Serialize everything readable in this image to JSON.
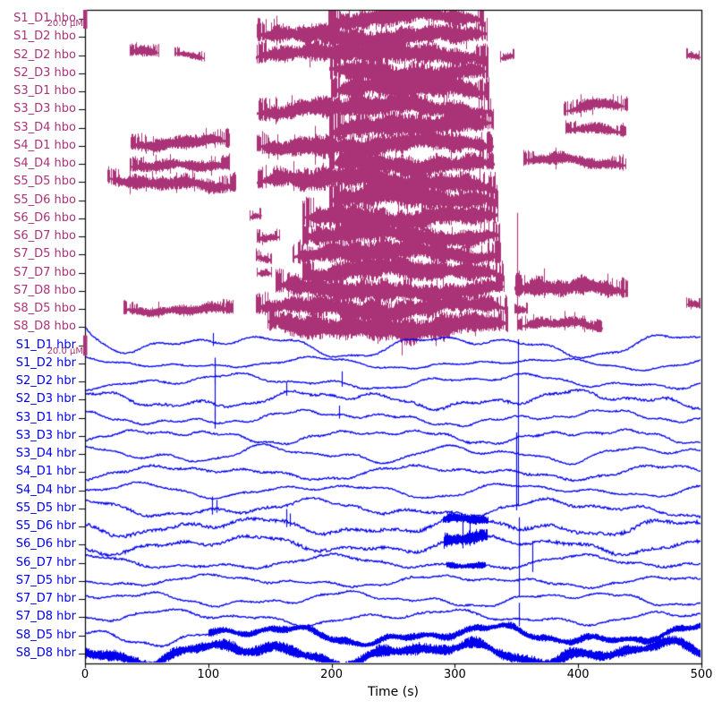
{
  "figure": {
    "xlabel": "Time (s)",
    "background": "#ffffff",
    "axis_color": "#000000"
  },
  "chart_data": {
    "type": "line",
    "title": "",
    "xlabel": "Time (s)",
    "ylabel": "",
    "x_range": [
      0,
      500
    ],
    "x_ticks": [
      0,
      100,
      200,
      300,
      400,
      500
    ],
    "grid": false,
    "legend": null,
    "colors": {
      "hbo": "#aa3377",
      "hbr": "#0000ee",
      "scalebar": "#aa3377",
      "axis": "#000000",
      "tick": "#000000"
    },
    "scalebars": [
      {
        "label": "20.0 µM",
        "channel_type": "hbo"
      },
      {
        "label": "20.0 µM",
        "channel_type": "hbr"
      }
    ],
    "n_channels": 36,
    "channels": [
      {
        "name": "S1_D1 hbo",
        "type": "hbo",
        "drift": 6,
        "segments": [
          [
            197,
            323,
            9
          ]
        ],
        "spikes": []
      },
      {
        "name": "S1_D2 hbo",
        "type": "hbo",
        "drift": 7,
        "segments": [
          [
            139,
            326,
            10
          ]
        ],
        "spikes": []
      },
      {
        "name": "S2_D2 hbo",
        "type": "hbo",
        "drift": 6,
        "segments": [
          [
            36,
            60,
            7
          ],
          [
            72,
            97,
            5
          ],
          [
            138,
            327,
            10
          ],
          [
            336,
            348,
            5
          ],
          [
            487,
            500,
            6
          ]
        ],
        "spikes": []
      },
      {
        "name": "S2_D3 hbo",
        "type": "hbo",
        "drift": 7,
        "segments": [
          [
            198,
            327,
            11
          ]
        ],
        "spikes": []
      },
      {
        "name": "S3_D1 hbo",
        "type": "hbo",
        "drift": 7,
        "segments": [
          [
            199,
            328,
            10
          ]
        ],
        "spikes": []
      },
      {
        "name": "S3_D3 hbo",
        "type": "hbo",
        "drift": 7,
        "segments": [
          [
            139,
            330,
            10
          ],
          [
            388,
            440,
            8
          ]
        ],
        "spikes": []
      },
      {
        "name": "S3_D4 hbo",
        "type": "hbo",
        "drift": 7,
        "segments": [
          [
            198,
            331,
            11
          ],
          [
            389,
            439,
            7
          ]
        ],
        "spikes": []
      },
      {
        "name": "S4_D1 hbo",
        "type": "hbo",
        "drift": 7,
        "segments": [
          [
            37,
            117,
            9
          ],
          [
            139,
            331,
            10
          ]
        ],
        "spikes": []
      },
      {
        "name": "S4_D4 hbo",
        "type": "hbo",
        "drift": 7,
        "segments": [
          [
            36,
            117,
            8
          ],
          [
            198,
            332,
            10
          ],
          [
            355,
            439,
            8
          ]
        ],
        "spikes": []
      },
      {
        "name": "S5_D5 hbo",
        "type": "hbo",
        "drift": 8,
        "segments": [
          [
            18,
            122,
            9
          ],
          [
            139,
            333,
            11
          ]
        ],
        "spikes": []
      },
      {
        "name": "S5_D6 hbo",
        "type": "hbo",
        "drift": 7,
        "segments": [
          [
            198,
            335,
            11
          ]
        ],
        "spikes": []
      },
      {
        "name": "S6_D6 hbo",
        "type": "hbo",
        "drift": 7,
        "segments": [
          [
            133,
            143,
            5
          ],
          [
            176,
            335,
            11
          ]
        ],
        "spikes": []
      },
      {
        "name": "S6_D7 hbo",
        "type": "hbo",
        "drift": 7,
        "segments": [
          [
            139,
            158,
            6
          ],
          [
            176,
            336,
            10
          ]
        ],
        "spikes": []
      },
      {
        "name": "S7_D5 hbo",
        "type": "hbo",
        "drift": 7,
        "segments": [
          [
            138,
            151,
            6
          ],
          [
            168,
            337,
            10
          ]
        ],
        "spikes": []
      },
      {
        "name": "S7_D7 hbo",
        "type": "hbo",
        "drift": 7,
        "segments": [
          [
            139,
            151,
            5
          ],
          [
            176,
            339,
            10
          ]
        ],
        "spikes": []
      },
      {
        "name": "S7_D8 hbo",
        "type": "hbo",
        "drift": 7,
        "segments": [
          [
            154,
            340,
            10
          ],
          [
            348,
            440,
            12
          ]
        ],
        "spikes": [
          [
            350.5,
            85
          ]
        ]
      },
      {
        "name": "S8_D5 hbo",
        "type": "hbo",
        "drift": 7,
        "segments": [
          [
            31,
            120,
            7
          ],
          [
            138,
            342,
            10
          ],
          [
            348,
            359,
            6
          ],
          [
            487,
            500,
            6
          ]
        ],
        "spikes": []
      },
      {
        "name": "S8_D8 hbo",
        "type": "hbo",
        "drift": 8,
        "segments": [
          [
            148,
            343,
            12
          ],
          [
            350,
            420,
            7
          ]
        ],
        "spikes": []
      },
      {
        "name": "S1_D1 hbr",
        "type": "hbr",
        "amp": 1.0,
        "drift": 16,
        "decay": [
          30,
          16
        ],
        "spikes": [
          [
            104,
            10
          ]
        ]
      },
      {
        "name": "S1_D2 hbr",
        "type": "hbr",
        "amp": 0.8,
        "drift": 8,
        "spikes": [
          [
            105,
            8
          ]
        ]
      },
      {
        "name": "S2_D2 hbr",
        "type": "hbr",
        "amp": 1.0,
        "drift": 10,
        "spikes": [
          [
            105,
            20
          ],
          [
            208,
            12
          ]
        ]
      },
      {
        "name": "S2_D3 hbr",
        "type": "hbr",
        "amp": 1.6,
        "drift": 12,
        "spikes": [
          [
            105,
            35
          ],
          [
            163,
            10
          ]
        ]
      },
      {
        "name": "S3_D1 hbr",
        "type": "hbr",
        "amp": 1.0,
        "drift": 10,
        "spikes": [
          [
            105,
            14
          ],
          [
            206,
            10
          ]
        ]
      },
      {
        "name": "S3_D3 hbr",
        "type": "hbr",
        "amp": 1.2,
        "drift": 10,
        "spikes": []
      },
      {
        "name": "S3_D4 hbr",
        "type": "hbr",
        "amp": 1.0,
        "drift": 12,
        "spikes": [
          [
            351,
            128
          ]
        ]
      },
      {
        "name": "S4_D1 hbr",
        "type": "hbr",
        "amp": 1.4,
        "drift": 10,
        "spikes": []
      },
      {
        "name": "S4_D4 hbr",
        "type": "hbr",
        "amp": 1.0,
        "drift": 10,
        "spikes": [
          [
            350,
            60
          ]
        ]
      },
      {
        "name": "S5_D5 hbr",
        "type": "hbr",
        "amp": 1.6,
        "drift": 12,
        "spikes": [
          [
            103,
            14
          ],
          [
            107,
            10
          ]
        ]
      },
      {
        "name": "S5_D6 hbr",
        "type": "hbr",
        "amp": 2.2,
        "drift": 12,
        "segments": [
          [
            290,
            327,
            6
          ]
        ],
        "spikes": [
          [
            163,
            14
          ],
          [
            166,
            10
          ]
        ]
      },
      {
        "name": "S6_D6 hbr",
        "type": "hbr",
        "amp": 2.0,
        "drift": 12,
        "segments": [
          [
            291,
            326,
            9
          ]
        ],
        "spikes": [
          [
            306,
            22
          ],
          [
            312,
            18
          ],
          [
            352,
            30
          ]
        ]
      },
      {
        "name": "S6_D7 hbr",
        "type": "hbr",
        "amp": 1.4,
        "drift": 10,
        "segments": [
          [
            293,
            325,
            4
          ]
        ],
        "spikes": [
          [
            363,
            24
          ]
        ]
      },
      {
        "name": "S7_D5 hbr",
        "type": "hbr",
        "amp": 1.2,
        "drift": 8,
        "spikes": [
          [
            352,
            40
          ]
        ]
      },
      {
        "name": "S7_D7 hbr",
        "type": "hbr",
        "amp": 1.0,
        "drift": 10,
        "spikes": []
      },
      {
        "name": "S7_D8 hbr",
        "type": "hbr",
        "amp": 1.2,
        "drift": 10,
        "spikes": [
          [
            352,
            18
          ]
        ]
      },
      {
        "name": "S8_D5 hbr",
        "type": "hbr",
        "amp": 1.2,
        "drift": 13,
        "segments": [
          [
            100,
            500,
            4.5
          ]
        ],
        "spikes": []
      },
      {
        "name": "S8_D8 hbr",
        "type": "hbr",
        "amp": 7,
        "drift": 15,
        "spikes": []
      }
    ]
  }
}
